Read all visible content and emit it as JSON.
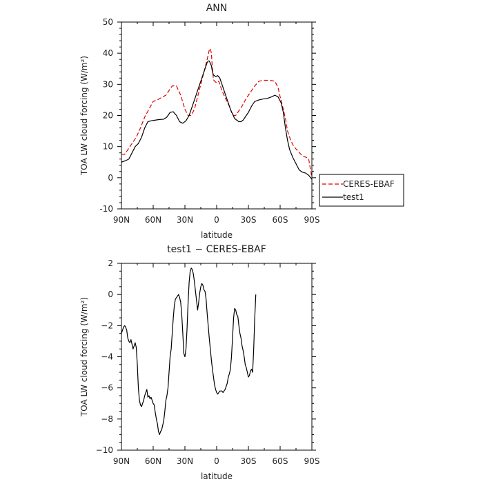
{
  "chart_data": [
    {
      "type": "line",
      "title": "ANN",
      "xlabel": "latitude",
      "ylabel": "TOA LW cloud forcing (W/m²)",
      "xlim": [
        90,
        -90
      ],
      "ylim": [
        -10,
        50
      ],
      "x_ticks": [
        90,
        60,
        30,
        0,
        -30,
        -60,
        -90
      ],
      "x_tick_labels": [
        "90N",
        "60N",
        "30N",
        "0",
        "30S",
        "60S",
        "90S"
      ],
      "y_ticks": [
        -10,
        0,
        10,
        20,
        30,
        40,
        50
      ],
      "y_tick_labels": [
        "-10",
        "0",
        "10",
        "20",
        "30",
        "40",
        "50"
      ],
      "legend": {
        "placement": "right",
        "entries": [
          "CERES-EBAF",
          "test1"
        ]
      },
      "series": [
        {
          "name": "CERES-EBAF",
          "color": "#dd0000",
          "dash": true,
          "points": [
            [
              90,
              7.5
            ],
            [
              87,
              7.5
            ],
            [
              84,
              9
            ],
            [
              80,
              11
            ],
            [
              76,
              13
            ],
            [
              72,
              16
            ],
            [
              68,
              19.5
            ],
            [
              64,
              22
            ],
            [
              60,
              24.5
            ],
            [
              56,
              25
            ],
            [
              52,
              25.8
            ],
            [
              48,
              26.5
            ],
            [
              45,
              28
            ],
            [
              42,
              29.5
            ],
            [
              38,
              29.5
            ],
            [
              34,
              26.5
            ],
            [
              30,
              22
            ],
            [
              27,
              20
            ],
            [
              24,
              20
            ],
            [
              21,
              22
            ],
            [
              18,
              26
            ],
            [
              15,
              30
            ],
            [
              12,
              34
            ],
            [
              9,
              38
            ],
            [
              7,
              41
            ],
            [
              6,
              41.5
            ],
            [
              5,
              40
            ],
            [
              4,
              35
            ],
            [
              3,
              31.5
            ],
            [
              2,
              31
            ],
            [
              0,
              30.5
            ],
            [
              -2,
              31
            ],
            [
              -5,
              28
            ],
            [
              -9,
              25
            ],
            [
              -12,
              23
            ],
            [
              -14,
              21
            ],
            [
              -16,
              20
            ],
            [
              -18,
              20
            ],
            [
              -20,
              21
            ],
            [
              -24,
              23
            ],
            [
              -28,
              25.5
            ],
            [
              -32,
              27.5
            ],
            [
              -36,
              29.5
            ],
            [
              -40,
              31
            ],
            [
              -44,
              31.3
            ],
            [
              -48,
              31.3
            ],
            [
              -52,
              31.2
            ],
            [
              -55,
              31
            ],
            [
              -58,
              29
            ],
            [
              -60,
              26
            ],
            [
              -63,
              22
            ],
            [
              -65,
              19
            ],
            [
              -67,
              15
            ],
            [
              -70,
              12
            ],
            [
              -73,
              10
            ],
            [
              -77,
              8.5
            ],
            [
              -81,
              7
            ],
            [
              -85,
              6.5
            ],
            [
              -87,
              6
            ],
            [
              -89,
              2
            ],
            [
              -90,
              0
            ]
          ]
        },
        {
          "name": "test1",
          "color": "#000000",
          "dash": false,
          "points": [
            [
              90,
              5
            ],
            [
              86,
              5.5
            ],
            [
              83,
              6
            ],
            [
              80,
              8
            ],
            [
              77,
              10
            ],
            [
              74,
              11
            ],
            [
              71,
              13
            ],
            [
              68,
              16
            ],
            [
              65,
              18
            ],
            [
              62,
              18.3
            ],
            [
              58,
              18.5
            ],
            [
              54,
              18.7
            ],
            [
              50,
              18.8
            ],
            [
              47,
              19.5
            ],
            [
              44,
              21
            ],
            [
              41,
              21.2
            ],
            [
              38,
              20
            ],
            [
              35,
              18
            ],
            [
              32,
              17.5
            ],
            [
              29,
              18.3
            ],
            [
              26,
              20
            ],
            [
              23,
              23
            ],
            [
              20,
              26
            ],
            [
              17,
              29
            ],
            [
              14,
              32
            ],
            [
              11,
              35
            ],
            [
              9,
              37
            ],
            [
              8,
              37.5
            ],
            [
              7,
              37.5
            ],
            [
              5,
              36
            ],
            [
              4,
              34
            ],
            [
              3,
              33
            ],
            [
              1,
              32.5
            ],
            [
              -1,
              32.8
            ],
            [
              -3,
              32
            ],
            [
              -5,
              30
            ],
            [
              -7,
              28
            ],
            [
              -9,
              26
            ],
            [
              -11,
              24
            ],
            [
              -13,
              22
            ],
            [
              -15,
              20.5
            ],
            [
              -17,
              19
            ],
            [
              -19,
              18.5
            ],
            [
              -21,
              18
            ],
            [
              -23,
              18
            ],
            [
              -25,
              18.5
            ],
            [
              -27,
              19.5
            ],
            [
              -30,
              21
            ],
            [
              -33,
              23
            ],
            [
              -36,
              24.5
            ],
            [
              -40,
              25
            ],
            [
              -44,
              25.3
            ],
            [
              -48,
              25.5
            ],
            [
              -52,
              26
            ],
            [
              -55,
              26.5
            ],
            [
              -58,
              26
            ],
            [
              -61,
              24
            ],
            [
              -63,
              21
            ],
            [
              -65,
              16
            ],
            [
              -67,
              12
            ],
            [
              -69,
              9
            ],
            [
              -72,
              6.5
            ],
            [
              -75,
              4.5
            ],
            [
              -78,
              2.5
            ],
            [
              -81,
              1.8
            ],
            [
              -84,
              1.5
            ],
            [
              -87,
              0.8
            ],
            [
              -90,
              -0.5
            ]
          ]
        }
      ]
    },
    {
      "type": "line",
      "title": "test1 − CERES-EBAF",
      "xlabel": "latitude",
      "ylabel": "TOA LW cloud forcing (W/m²)",
      "xlim": [
        90,
        -90
      ],
      "ylim": [
        -10,
        2
      ],
      "x_ticks": [
        90,
        60,
        30,
        0,
        -30,
        -60,
        -90
      ],
      "x_tick_labels": [
        "90N",
        "60N",
        "30N",
        "0",
        "30S",
        "60S",
        "90S"
      ],
      "y_ticks": [
        -10,
        -8,
        -6,
        -4,
        -2,
        0,
        2
      ],
      "y_tick_labels": [
        "−10",
        "−8",
        "−6",
        "−4",
        "−2",
        "0",
        "2"
      ],
      "series": [
        {
          "color": "#000000",
          "dash": false,
          "points": [
            [
              90,
              -2.5
            ],
            [
              89,
              -2.3
            ],
            [
              88,
              -2.1
            ],
            [
              87,
              -2.0
            ],
            [
              86,
              -2.1
            ],
            [
              85,
              -2.3
            ],
            [
              84,
              -2.8
            ],
            [
              83,
              -3.0
            ],
            [
              82,
              -3.1
            ],
            [
              81,
              -2.9
            ],
            [
              80,
              -3.2
            ],
            [
              79,
              -3.5
            ],
            [
              78,
              -3.3
            ],
            [
              77,
              -3.1
            ],
            [
              76,
              -3.4
            ],
            [
              75,
              -4.5
            ],
            [
              74,
              -6.0
            ],
            [
              73,
              -6.8
            ],
            [
              72,
              -7.1
            ],
            [
              71,
              -7.2
            ],
            [
              70,
              -7.0
            ],
            [
              69,
              -6.8
            ],
            [
              68,
              -6.5
            ],
            [
              67,
              -6.3
            ],
            [
              66,
              -6.1
            ],
            [
              65,
              -6.6
            ],
            [
              64,
              -6.5
            ],
            [
              63,
              -6.7
            ],
            [
              62,
              -6.6
            ],
            [
              61,
              -6.8
            ],
            [
              60,
              -7.0
            ],
            [
              59,
              -7.1
            ],
            [
              58,
              -7.6
            ],
            [
              57,
              -8.0
            ],
            [
              56,
              -8.3
            ],
            [
              55,
              -8.8
            ],
            [
              54,
              -9.0
            ],
            [
              53,
              -8.8
            ],
            [
              52,
              -8.7
            ],
            [
              51,
              -8.4
            ],
            [
              50,
              -8.1
            ],
            [
              49,
              -7.5
            ],
            [
              48,
              -6.8
            ],
            [
              47,
              -6.5
            ],
            [
              46,
              -6.0
            ],
            [
              45,
              -5.0
            ],
            [
              44,
              -4.0
            ],
            [
              43,
              -3.5
            ],
            [
              42,
              -2.5
            ],
            [
              41,
              -1.5
            ],
            [
              40,
              -0.7
            ],
            [
              39,
              -0.3
            ],
            [
              38,
              -0.2
            ],
            [
              37,
              -0.1
            ],
            [
              36,
              0
            ],
            [
              35,
              -0.2
            ],
            [
              34,
              -0.5
            ],
            [
              33,
              -1.3
            ],
            [
              32,
              -2.5
            ],
            [
              31,
              -3.8
            ],
            [
              30,
              -4.0
            ],
            [
              29,
              -3.5
            ],
            [
              28,
              -2.2
            ],
            [
              27,
              -0.5
            ],
            [
              26,
              0.8
            ],
            [
              25,
              1.5
            ],
            [
              24,
              1.7
            ],
            [
              23,
              1.6
            ],
            [
              22,
              1.3
            ],
            [
              21,
              0.8
            ],
            [
              20,
              0.2
            ],
            [
              19,
              -0.4
            ],
            [
              18,
              -1.0
            ],
            [
              17,
              -0.5
            ],
            [
              16,
              0.1
            ],
            [
              15,
              0.5
            ],
            [
              14,
              0.7
            ],
            [
              13,
              0.6
            ],
            [
              12,
              0.3
            ],
            [
              11,
              0.2
            ],
            [
              10,
              -0.3
            ],
            [
              9,
              -1.2
            ],
            [
              8,
              -2.0
            ],
            [
              7,
              -2.8
            ],
            [
              6,
              -3.5
            ],
            [
              5,
              -4.2
            ],
            [
              4,
              -4.8
            ],
            [
              3,
              -5.3
            ],
            [
              2,
              -5.8
            ],
            [
              1,
              -6.1
            ],
            [
              0,
              -6.3
            ],
            [
              -1,
              -6.4
            ],
            [
              -2,
              -6.3
            ],
            [
              -3,
              -6.2
            ],
            [
              -4,
              -6.2
            ],
            [
              -5,
              -6.2
            ],
            [
              -6,
              -6.3
            ],
            [
              -7,
              -6.2
            ],
            [
              -8,
              -6.1
            ],
            [
              -9,
              -5.9
            ],
            [
              -10,
              -5.7
            ],
            [
              -11,
              -5.3
            ],
            [
              -12,
              -5.1
            ],
            [
              -13,
              -4.8
            ],
            [
              -14,
              -4.0
            ],
            [
              -15,
              -2.8
            ],
            [
              -16,
              -1.5
            ],
            [
              -17,
              -0.9
            ],
            [
              -18,
              -1.0
            ],
            [
              -19,
              -1.3
            ],
            [
              -20,
              -1.4
            ],
            [
              -21,
              -2.0
            ],
            [
              -22,
              -2.5
            ],
            [
              -23,
              -2.8
            ],
            [
              -24,
              -3.3
            ],
            [
              -25,
              -3.6
            ],
            [
              -26,
              -4.0
            ],
            [
              -27,
              -4.5
            ],
            [
              -28,
              -4.7
            ],
            [
              -29,
              -5.0
            ],
            [
              -30,
              -5.3
            ],
            [
              -31,
              -5.2
            ],
            [
              -32,
              -4.9
            ],
            [
              -33,
              -4.8
            ],
            [
              -34,
              -5.0
            ],
            [
              -35,
              -3.5
            ],
            [
              -36,
              -1.5
            ],
            [
              -37,
              0
            ]
          ]
        }
      ]
    }
  ]
}
